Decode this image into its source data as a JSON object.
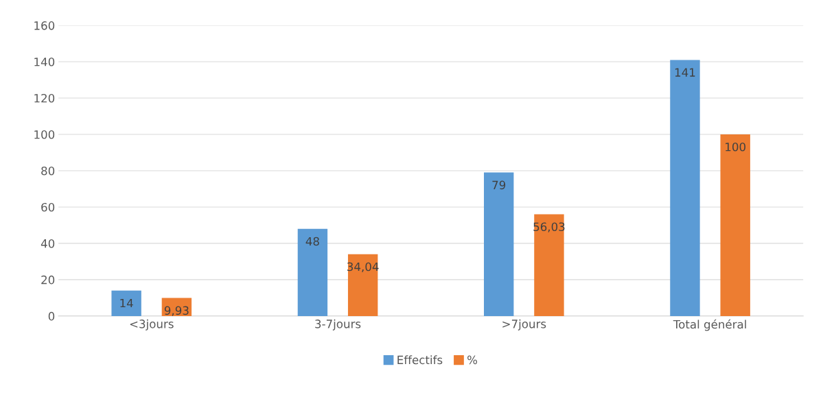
{
  "chart_data": {
    "type": "bar",
    "categories": [
      "<3jours",
      "3-7jours",
      ">7jours",
      "Total général"
    ],
    "series": [
      {
        "name": "Effectifs",
        "color": "#5b9bd5",
        "values": [
          14,
          48,
          79,
          141
        ],
        "value_labels": [
          "14",
          "48",
          "79",
          "141"
        ]
      },
      {
        "name": "%",
        "color": "#ed7d31",
        "values": [
          9.93,
          34.04,
          56.03,
          100
        ],
        "value_labels": [
          "9,93",
          "34,04",
          "56,03",
          "100"
        ]
      }
    ],
    "ylim": [
      0,
      160
    ],
    "yticks": [
      0,
      20,
      40,
      60,
      80,
      100,
      120,
      140,
      160
    ],
    "grid": "y",
    "legend": "bottom"
  }
}
